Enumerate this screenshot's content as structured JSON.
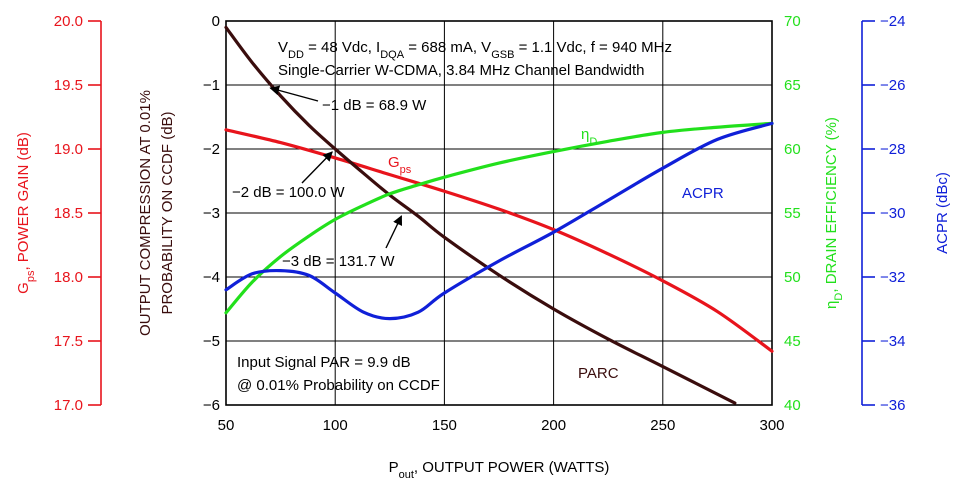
{
  "chart_data": {
    "type": "line",
    "x_axis": {
      "label_main": "P",
      "label_sub": "out",
      "label_rest": ", OUTPUT POWER (WATTS)",
      "ticks": [
        "50",
        "100",
        "150",
        "200",
        "250",
        "300"
      ],
      "range": [
        50,
        300
      ]
    },
    "axes": {
      "gain": {
        "color": "#e8141c",
        "label_main": "G",
        "label_sub": "ps",
        "label_rest": ", POWER GAIN (dB)",
        "range": [
          17.0,
          20.0
        ],
        "ticks": [
          "17.0",
          "17.5",
          "18.0",
          "18.5",
          "19.0",
          "19.5",
          "20.0"
        ]
      },
      "compression": {
        "color": "#3a0d0d",
        "label_line1": "OUTPUT COMPRESSION AT 0.01%",
        "label_line2": "PROBABILITY ON CCDF (dB)",
        "range": [
          -6,
          0
        ],
        "ticks": [
          "−6",
          "−5",
          "−4",
          "−3",
          "−2",
          "−1",
          "0"
        ]
      },
      "efficiency": {
        "color": "#22e01c",
        "label_main": "η",
        "label_sub": "D",
        "label_rest": ", DRAIN EFFICIENCY (%)",
        "range": [
          40,
          70
        ],
        "ticks": [
          "40",
          "45",
          "50",
          "55",
          "60",
          "65",
          "70"
        ]
      },
      "acpr": {
        "color": "#1020d8",
        "label": "ACPR (dBc)",
        "range": [
          -36,
          -24
        ],
        "ticks": [
          "−36",
          "−34",
          "−32",
          "−30",
          "−28",
          "−26",
          "−24"
        ]
      }
    },
    "series": [
      {
        "name": "Gps",
        "label_main": "G",
        "label_sub": "ps",
        "axis": "gain",
        "color": "#e8141c",
        "x": [
          50,
          75,
          100,
          125,
          150,
          175,
          200,
          225,
          250,
          275,
          300
        ],
        "y": [
          19.15,
          19.05,
          18.93,
          18.8,
          18.67,
          18.53,
          18.37,
          18.18,
          17.97,
          17.73,
          17.42
        ]
      },
      {
        "name": "PARC",
        "label_main": "PARC",
        "axis": "compression",
        "color": "#3a0d0d",
        "x": [
          50,
          62,
          75,
          88,
          100,
          113,
          125,
          138,
          150,
          175,
          200,
          225,
          250,
          283
        ],
        "y": [
          -0.1,
          -0.65,
          -1.17,
          -1.63,
          -2.0,
          -2.38,
          -2.72,
          -3.05,
          -3.38,
          -3.97,
          -4.5,
          -4.97,
          -5.4,
          -5.97
        ]
      },
      {
        "name": "ηD",
        "label_main": "η",
        "label_sub": "D",
        "axis": "efficiency",
        "color": "#22e01c",
        "x": [
          50,
          62,
          75,
          88,
          100,
          113,
          125,
          138,
          150,
          175,
          200,
          225,
          250,
          275,
          300
        ],
        "y": [
          47.2,
          49.6,
          51.6,
          53.2,
          54.5,
          55.6,
          56.5,
          57.2,
          57.8,
          58.9,
          59.8,
          60.6,
          61.3,
          61.7,
          62.0
        ]
      },
      {
        "name": "ACPR",
        "label_main": "ACPR",
        "axis": "acpr",
        "color": "#1020d8",
        "x": [
          50,
          62,
          75,
          88,
          100,
          113,
          125,
          138,
          150,
          175,
          200,
          225,
          250,
          275,
          300
        ],
        "y": [
          -32.4,
          -31.9,
          -31.8,
          -31.95,
          -32.5,
          -33.1,
          -33.3,
          -33.1,
          -32.5,
          -31.5,
          -30.6,
          -29.6,
          -28.6,
          -27.7,
          -27.2
        ]
      }
    ],
    "annotations": {
      "conditions_line1_parts": [
        {
          "t": "V",
          "sub": false
        },
        {
          "t": "DD",
          "sub": true
        },
        {
          "t": " = 48 Vdc, I",
          "sub": false
        },
        {
          "t": "DQA",
          "sub": true
        },
        {
          "t": " = 688 mA, V",
          "sub": false
        },
        {
          "t": "GSB",
          "sub": true
        },
        {
          "t": " = 1.1 Vdc,  f = 940 MHz",
          "sub": false
        }
      ],
      "conditions_line2": "Single-Carrier W-CDMA, 3.84 MHz Channel Bandwidth",
      "callout_1db": "−1 dB = 68.9 W",
      "callout_2db": "−2 dB = 100.0 W",
      "callout_3db": "−3 dB = 131.7 W",
      "callout_1db_point": [
        68.9,
        -1
      ],
      "callout_2db_point": [
        100.0,
        -2
      ],
      "callout_3db_point": [
        131.7,
        -3
      ],
      "input_signal_line1": "Input Signal PAR = 9.9 dB",
      "input_signal_line2": "@ 0.01% Probability on CCDF"
    }
  }
}
